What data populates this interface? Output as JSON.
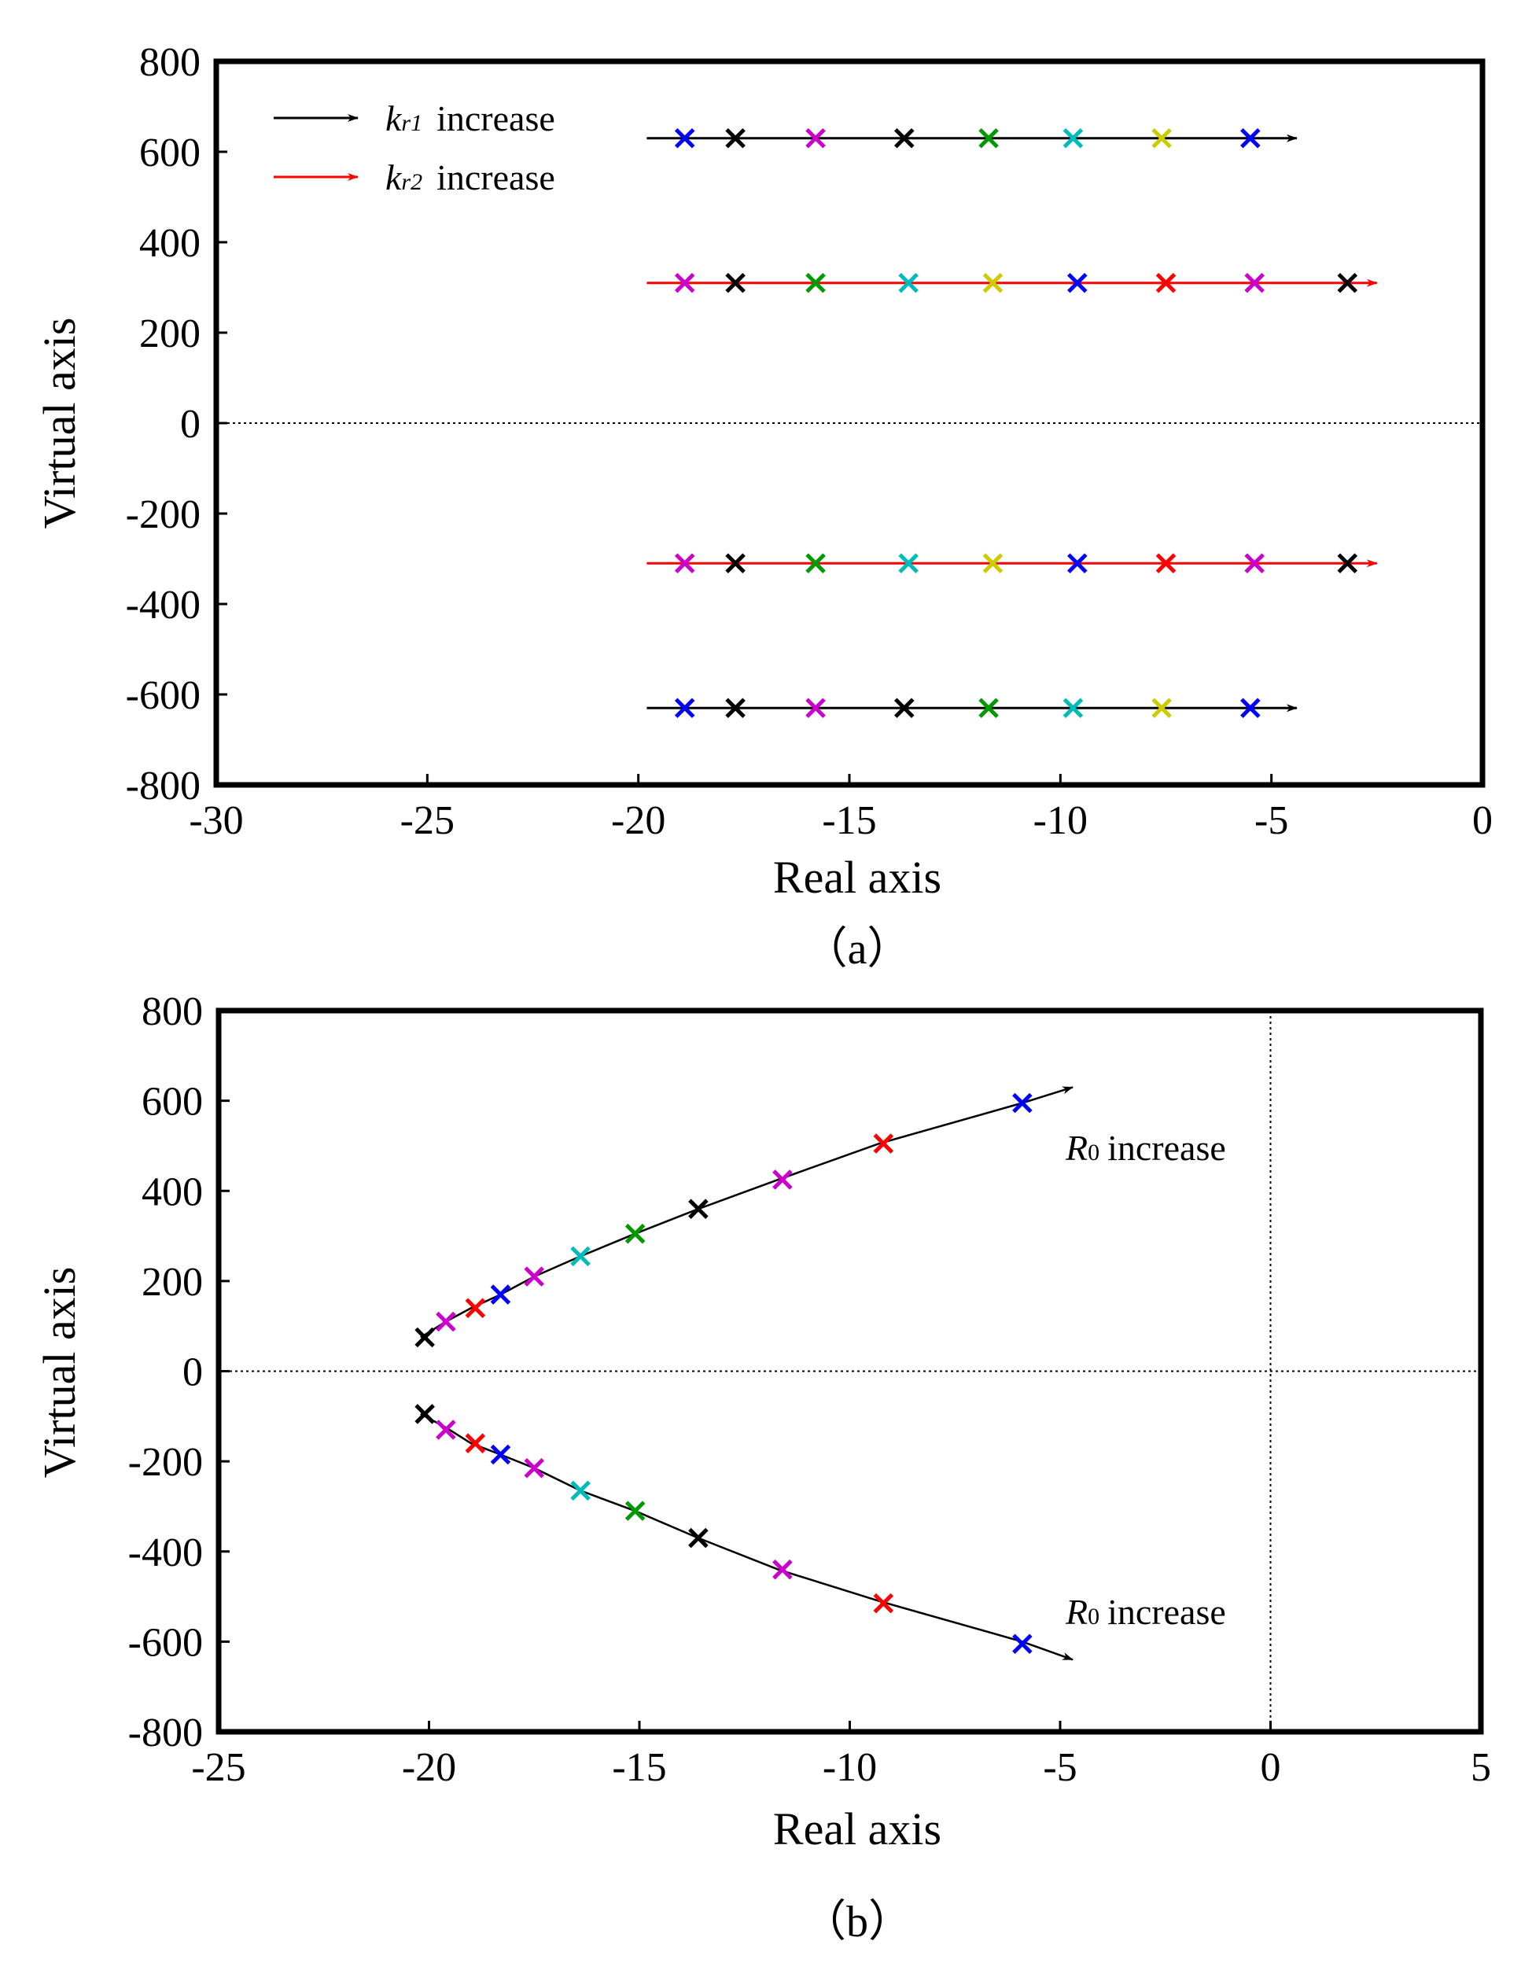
{
  "chart_data": [
    {
      "type": "scatter",
      "panel": "(a)",
      "caption": "（a）",
      "xlabel": "Real axis",
      "ylabel": "Virtual axis",
      "xlim": [
        -30,
        0
      ],
      "ylim": [
        -800,
        800
      ],
      "xticks": [
        -30,
        -25,
        -20,
        -15,
        -10,
        -5,
        0
      ],
      "yticks": [
        800,
        600,
        400,
        200,
        0,
        -200,
        -400,
        -600,
        -800
      ],
      "x_tick_labels": [
        "-30",
        "-25",
        "-20",
        "-15",
        "-10",
        "-5",
        "0"
      ],
      "y_tick_labels": [
        "800",
        "600",
        "400",
        "200",
        "0",
        "-200",
        "-400",
        "-600",
        "-800"
      ],
      "reference_lines": [
        {
          "orientation": "horizontal",
          "value": 0,
          "style": "dotted"
        }
      ],
      "legend": {
        "position": "top-left",
        "entries": [
          {
            "symbol": "k",
            "subscript": "r1",
            "text": "increase",
            "color": "#000000"
          },
          {
            "symbol": "k",
            "subscript": "r2",
            "text": "increase",
            "color": "#ff0000"
          }
        ]
      },
      "series": [
        {
          "name": "kr1 increase (upper)",
          "arrow_color": "#000000",
          "arrow": {
            "from": [
              -19.8,
              630
            ],
            "to": [
              -4.4,
              630
            ]
          },
          "points": [
            {
              "x": -18.9,
              "y": 630,
              "color": "#0000ff"
            },
            {
              "x": -17.7,
              "y": 630,
              "color": "#000000"
            },
            {
              "x": -15.8,
              "y": 630,
              "color": "#cc00cc"
            },
            {
              "x": -13.7,
              "y": 630,
              "color": "#000000"
            },
            {
              "x": -11.7,
              "y": 630,
              "color": "#009900"
            },
            {
              "x": -9.7,
              "y": 630,
              "color": "#00bbbb"
            },
            {
              "x": -7.6,
              "y": 630,
              "color": "#cccc00"
            },
            {
              "x": -5.5,
              "y": 630,
              "color": "#0000ff"
            }
          ]
        },
        {
          "name": "kr2 increase (upper)",
          "arrow_color": "#ff0000",
          "arrow": {
            "from": [
              -19.8,
              310
            ],
            "to": [
              -2.5,
              310
            ]
          },
          "points": [
            {
              "x": -18.9,
              "y": 310,
              "color": "#cc00cc"
            },
            {
              "x": -17.7,
              "y": 310,
              "color": "#000000"
            },
            {
              "x": -15.8,
              "y": 310,
              "color": "#009900"
            },
            {
              "x": -13.6,
              "y": 310,
              "color": "#00bbbb"
            },
            {
              "x": -11.6,
              "y": 310,
              "color": "#cccc00"
            },
            {
              "x": -9.6,
              "y": 310,
              "color": "#0000ff"
            },
            {
              "x": -7.5,
              "y": 310,
              "color": "#ff0000"
            },
            {
              "x": -5.4,
              "y": 310,
              "color": "#cc00cc"
            },
            {
              "x": -3.2,
              "y": 310,
              "color": "#000000"
            }
          ]
        },
        {
          "name": "kr2 increase (lower)",
          "arrow_color": "#ff0000",
          "arrow": {
            "from": [
              -19.8,
              -310
            ],
            "to": [
              -2.5,
              -310
            ]
          },
          "points": [
            {
              "x": -18.9,
              "y": -310,
              "color": "#cc00cc"
            },
            {
              "x": -17.7,
              "y": -310,
              "color": "#000000"
            },
            {
              "x": -15.8,
              "y": -310,
              "color": "#009900"
            },
            {
              "x": -13.6,
              "y": -310,
              "color": "#00bbbb"
            },
            {
              "x": -11.6,
              "y": -310,
              "color": "#cccc00"
            },
            {
              "x": -9.6,
              "y": -310,
              "color": "#0000ff"
            },
            {
              "x": -7.5,
              "y": -310,
              "color": "#ff0000"
            },
            {
              "x": -5.4,
              "y": -310,
              "color": "#cc00cc"
            },
            {
              "x": -3.2,
              "y": -310,
              "color": "#000000"
            }
          ]
        },
        {
          "name": "kr1 increase (lower)",
          "arrow_color": "#000000",
          "arrow": {
            "from": [
              -19.8,
              -630
            ],
            "to": [
              -4.4,
              -630
            ]
          },
          "points": [
            {
              "x": -18.9,
              "y": -630,
              "color": "#0000ff"
            },
            {
              "x": -17.7,
              "y": -630,
              "color": "#000000"
            },
            {
              "x": -15.8,
              "y": -630,
              "color": "#cc00cc"
            },
            {
              "x": -13.7,
              "y": -630,
              "color": "#000000"
            },
            {
              "x": -11.7,
              "y": -630,
              "color": "#009900"
            },
            {
              "x": -9.7,
              "y": -630,
              "color": "#00bbbb"
            },
            {
              "x": -7.6,
              "y": -630,
              "color": "#cccc00"
            },
            {
              "x": -5.5,
              "y": -630,
              "color": "#0000ff"
            }
          ]
        }
      ]
    },
    {
      "type": "scatter",
      "panel": "(b)",
      "caption": "（b）",
      "xlabel": "Real axis",
      "ylabel": "Virtual axis",
      "xlim": [
        -25,
        5
      ],
      "ylim": [
        -800,
        800
      ],
      "xticks": [
        -25,
        -20,
        -15,
        -10,
        -5,
        0,
        5
      ],
      "yticks": [
        800,
        600,
        400,
        200,
        0,
        -200,
        -400,
        -600,
        -800
      ],
      "x_tick_labels": [
        "-25",
        "-20",
        "-15",
        "-10",
        "-5",
        "0",
        "5"
      ],
      "y_tick_labels": [
        "800",
        "600",
        "400",
        "200",
        "0",
        "-200",
        "-400",
        "-600",
        "-800"
      ],
      "reference_lines": [
        {
          "orientation": "horizontal",
          "value": 0,
          "style": "dotted"
        },
        {
          "orientation": "vertical",
          "value": 0,
          "style": "dotted"
        }
      ],
      "annotations": [
        {
          "symbol": "R",
          "subscript": "0",
          "text": "increase",
          "near": "upper branch end"
        },
        {
          "symbol": "R",
          "subscript": "0",
          "text": "increase",
          "near": "lower branch end"
        }
      ],
      "series": [
        {
          "name": "R0 increase (upper)",
          "arrow_color": "#000000",
          "curve": [
            [
              -20.2,
              75
            ],
            [
              -19.6,
              110
            ],
            [
              -19.0,
              140
            ],
            [
              -18.3,
              170
            ],
            [
              -17.5,
              210
            ],
            [
              -16.4,
              255
            ],
            [
              -15.1,
              305
            ],
            [
              -13.6,
              360
            ],
            [
              -11.7,
              425
            ],
            [
              -9.3,
              505
            ],
            [
              -5.9,
              595
            ],
            [
              -4.7,
              630
            ]
          ],
          "points": [
            {
              "x": -20.1,
              "y": 75,
              "color": "#000000"
            },
            {
              "x": -19.6,
              "y": 110,
              "color": "#cc00cc"
            },
            {
              "x": -18.9,
              "y": 140,
              "color": "#ff0000"
            },
            {
              "x": -18.3,
              "y": 170,
              "color": "#0000ff"
            },
            {
              "x": -17.5,
              "y": 210,
              "color": "#cc00cc"
            },
            {
              "x": -16.4,
              "y": 255,
              "color": "#00bbbb"
            },
            {
              "x": -15.1,
              "y": 305,
              "color": "#009900"
            },
            {
              "x": -13.6,
              "y": 360,
              "color": "#000000"
            },
            {
              "x": -11.6,
              "y": 425,
              "color": "#cc00cc"
            },
            {
              "x": -9.2,
              "y": 505,
              "color": "#ff0000"
            },
            {
              "x": -5.9,
              "y": 595,
              "color": "#0000ff"
            }
          ]
        },
        {
          "name": "R0 increase (lower)",
          "arrow_color": "#000000",
          "curve": [
            [
              -20.2,
              -95
            ],
            [
              -19.6,
              -125
            ],
            [
              -19.0,
              -160
            ],
            [
              -18.3,
              -185
            ],
            [
              -17.5,
              -215
            ],
            [
              -16.4,
              -265
            ],
            [
              -15.1,
              -310
            ],
            [
              -13.6,
              -370
            ],
            [
              -11.7,
              -440
            ],
            [
              -9.3,
              -510
            ],
            [
              -5.9,
              -600
            ],
            [
              -4.7,
              -640
            ]
          ],
          "points": [
            {
              "x": -20.1,
              "y": -95,
              "color": "#000000"
            },
            {
              "x": -19.6,
              "y": -130,
              "color": "#cc00cc"
            },
            {
              "x": -18.9,
              "y": -160,
              "color": "#ff0000"
            },
            {
              "x": -18.3,
              "y": -185,
              "color": "#0000ff"
            },
            {
              "x": -17.5,
              "y": -215,
              "color": "#cc00cc"
            },
            {
              "x": -16.4,
              "y": -265,
              "color": "#00bbbb"
            },
            {
              "x": -15.1,
              "y": -310,
              "color": "#009900"
            },
            {
              "x": -13.6,
              "y": -370,
              "color": "#000000"
            },
            {
              "x": -11.6,
              "y": -440,
              "color": "#cc00cc"
            },
            {
              "x": -9.2,
              "y": -515,
              "color": "#ff0000"
            },
            {
              "x": -5.9,
              "y": -605,
              "color": "#0000ff"
            }
          ]
        }
      ]
    }
  ]
}
